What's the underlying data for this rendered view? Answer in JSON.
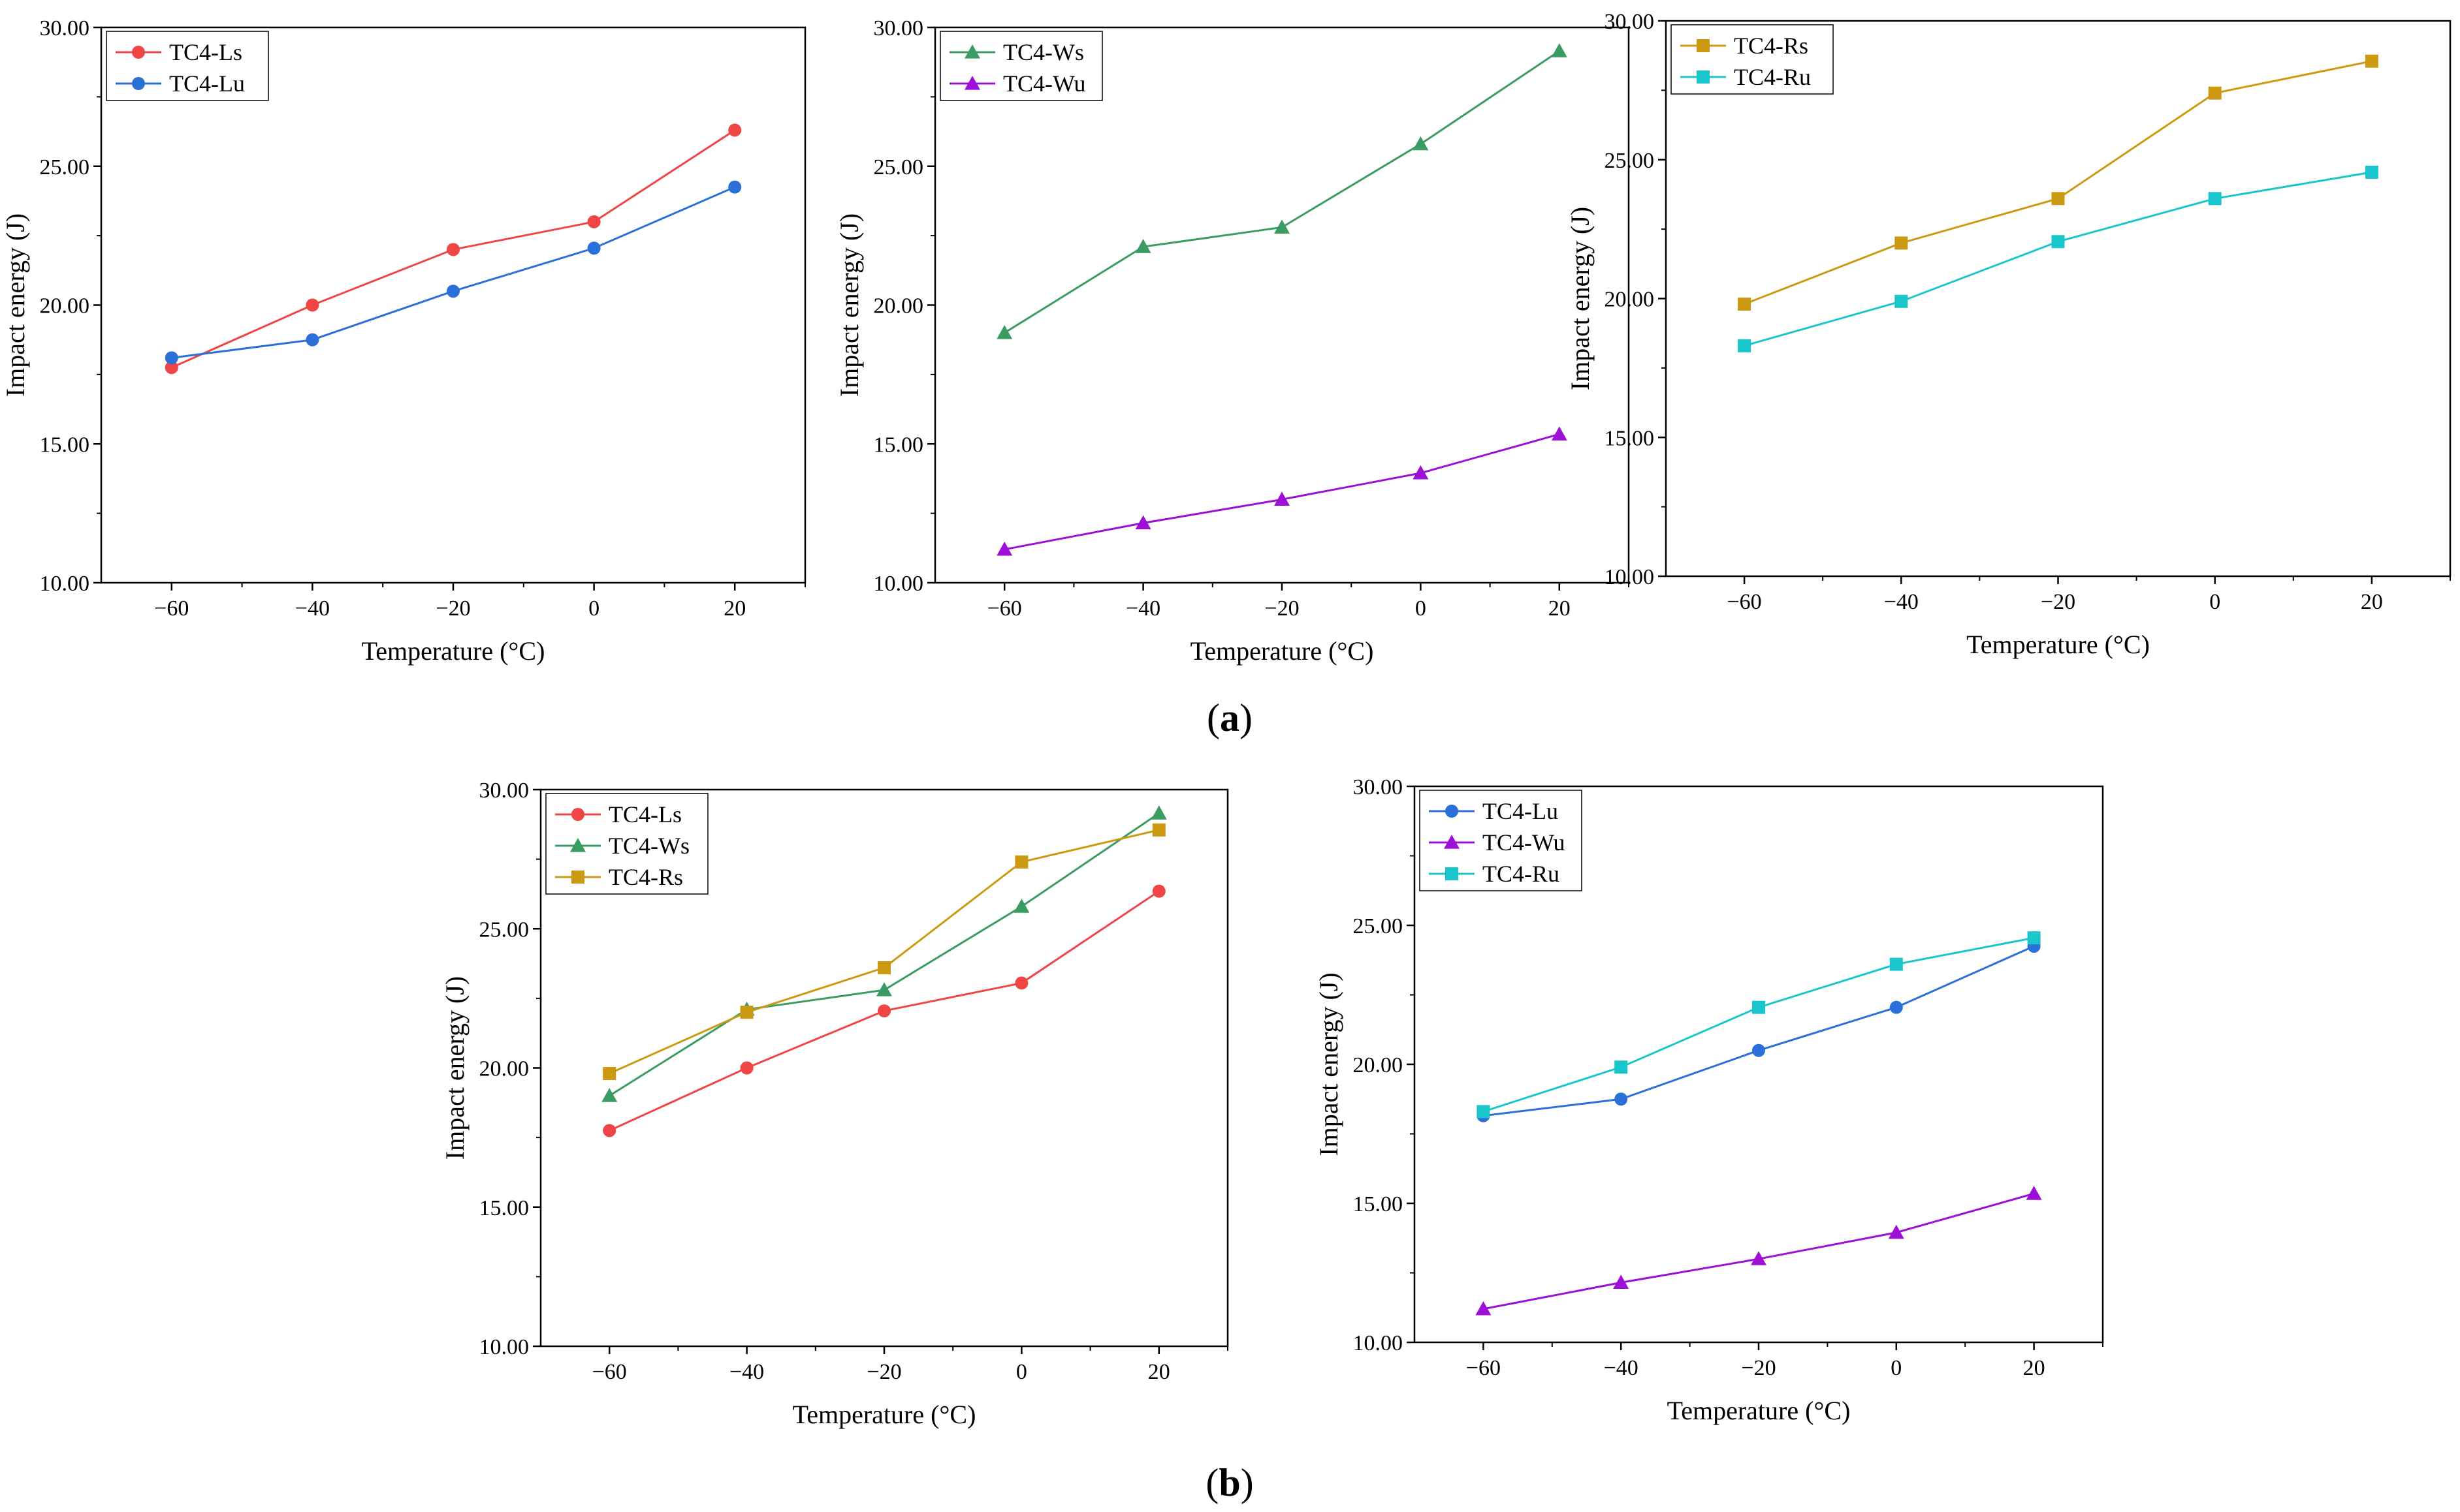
{
  "figure": {
    "panel_labels": [
      {
        "open": "(",
        "letter": "a",
        "close": ")"
      },
      {
        "open": "(",
        "letter": "b",
        "close": ")"
      }
    ]
  },
  "series_styles": {
    "TC4-Ls": {
      "color": "#f04545",
      "marker": "circle"
    },
    "TC4-Lu": {
      "color": "#2b6fd8",
      "marker": "circle"
    },
    "TC4-Ws": {
      "color": "#3a9b63",
      "marker": "triangle"
    },
    "TC4-Wu": {
      "color": "#9d0fd6",
      "marker": "triangle"
    },
    "TC4-Rs": {
      "color": "#cc9a12",
      "marker": "square"
    },
    "TC4-Ru": {
      "color": "#19c6cc",
      "marker": "square"
    }
  },
  "chart_data": [
    {
      "type": "line",
      "panel": "a",
      "xlabel": "Temperature (°C)",
      "ylabel": "Impact energy (J)",
      "xlim": [
        -70,
        30
      ],
      "ylim": [
        10,
        30
      ],
      "xticks": [
        -60,
        -40,
        -20,
        0,
        20
      ],
      "xtick_labels": [
        "−60",
        "−40",
        "−20",
        "0",
        "20"
      ],
      "yticks": [
        10,
        15,
        20,
        25,
        30
      ],
      "ytick_labels": [
        "10.00",
        "15.00",
        "20.00",
        "25.00",
        "30.00"
      ],
      "legend_position": "top-left",
      "x": [
        -60,
        -40,
        -20,
        0,
        20
      ],
      "series": [
        {
          "name": "TC4-Ls",
          "values": [
            17.75,
            20.0,
            22.0,
            23.0,
            26.3
          ]
        },
        {
          "name": "TC4-Lu",
          "values": [
            18.1,
            18.75,
            20.5,
            22.05,
            24.25
          ]
        }
      ]
    },
    {
      "type": "line",
      "panel": "a",
      "xlabel": "Temperature (°C)",
      "ylabel": "Impact energy (J)",
      "xlim": [
        -70,
        30
      ],
      "ylim": [
        10,
        30
      ],
      "xticks": [
        -60,
        -40,
        -20,
        0,
        20
      ],
      "xtick_labels": [
        "−60",
        "−40",
        "−20",
        "0",
        "20"
      ],
      "yticks": [
        10,
        15,
        20,
        25,
        30
      ],
      "ytick_labels": [
        "10.00",
        "15.00",
        "20.00",
        "25.00",
        "30.00"
      ],
      "legend_position": "top-left",
      "x": [
        -60,
        -40,
        -20,
        0,
        20
      ],
      "series": [
        {
          "name": "TC4-Ws",
          "values": [
            19.0,
            22.1,
            22.8,
            25.8,
            29.15
          ]
        },
        {
          "name": "TC4-Wu",
          "values": [
            11.2,
            12.15,
            13.0,
            13.95,
            15.35
          ]
        }
      ]
    },
    {
      "type": "line",
      "panel": "a",
      "xlabel": "Temperature (°C)",
      "ylabel": "Impact energy (J)",
      "xlim": [
        -70,
        30
      ],
      "ylim": [
        10,
        30
      ],
      "xticks": [
        -60,
        -40,
        -20,
        0,
        20
      ],
      "xtick_labels": [
        "−60",
        "−40",
        "−20",
        "0",
        "20"
      ],
      "yticks": [
        10,
        15,
        20,
        25,
        30
      ],
      "ytick_labels": [
        "10.00",
        "15.00",
        "20.00",
        "25.00",
        "30.00"
      ],
      "legend_position": "top-left",
      "x": [
        -60,
        -40,
        -20,
        0,
        20
      ],
      "series": [
        {
          "name": "TC4-Rs",
          "values": [
            19.8,
            22.0,
            23.6,
            27.4,
            28.55
          ]
        },
        {
          "name": "TC4-Ru",
          "values": [
            18.3,
            19.9,
            22.05,
            23.6,
            24.55
          ]
        }
      ]
    },
    {
      "type": "line",
      "panel": "b",
      "xlabel": "Temperature (°C)",
      "ylabel": "Impact energy (J)",
      "xlim": [
        -70,
        30
      ],
      "ylim": [
        10,
        30
      ],
      "xticks": [
        -60,
        -40,
        -20,
        0,
        20
      ],
      "xtick_labels": [
        "−60",
        "−40",
        "−20",
        "0",
        "20"
      ],
      "yticks": [
        10,
        15,
        20,
        25,
        30
      ],
      "ytick_labels": [
        "10.00",
        "15.00",
        "20.00",
        "25.00",
        "30.00"
      ],
      "legend_position": "top-left",
      "x": [
        -60,
        -40,
        -20,
        0,
        20
      ],
      "series": [
        {
          "name": "TC4-Ls",
          "values": [
            17.75,
            20.0,
            22.05,
            23.05,
            26.35
          ]
        },
        {
          "name": "TC4-Ws",
          "values": [
            19.0,
            22.1,
            22.8,
            25.8,
            29.15
          ]
        },
        {
          "name": "TC4-Rs",
          "values": [
            19.8,
            22.0,
            23.6,
            27.4,
            28.55
          ]
        }
      ]
    },
    {
      "type": "line",
      "panel": "b",
      "xlabel": "Temperature (°C)",
      "ylabel": "Impact energy (J)",
      "xlim": [
        -70,
        30
      ],
      "ylim": [
        10,
        30
      ],
      "xticks": [
        -60,
        -40,
        -20,
        0,
        20
      ],
      "xtick_labels": [
        "−60",
        "−40",
        "−20",
        "0",
        "20"
      ],
      "yticks": [
        10,
        15,
        20,
        25,
        30
      ],
      "ytick_labels": [
        "10.00",
        "15.00",
        "20.00",
        "25.00",
        "30.00"
      ],
      "legend_position": "top-left",
      "x": [
        -60,
        -40,
        -20,
        0,
        20
      ],
      "series": [
        {
          "name": "TC4-Lu",
          "values": [
            18.15,
            18.75,
            20.5,
            22.05,
            24.25
          ]
        },
        {
          "name": "TC4-Wu",
          "values": [
            11.2,
            12.15,
            13.0,
            13.95,
            15.35
          ]
        },
        {
          "name": "TC4-Ru",
          "values": [
            18.3,
            19.9,
            22.05,
            23.6,
            24.55
          ]
        }
      ]
    }
  ]
}
